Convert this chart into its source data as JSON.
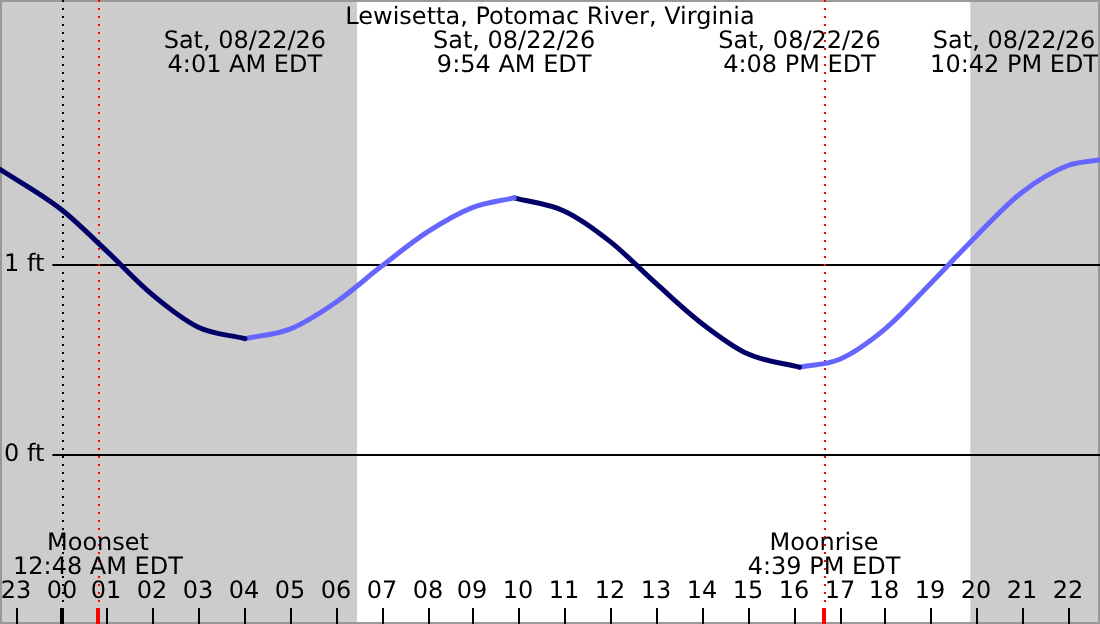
{
  "chart_data": {
    "type": "line",
    "title": "Lewisetta, Potomac River, Virginia",
    "xlim": [
      "--08-21T22:40",
      "--08-22T22:42"
    ],
    "ylim": [
      -0.89,
      2.39
    ],
    "xticks": [
      {
        "value": "--08-21T23:00",
        "label": "23"
      },
      {
        "value": "--08-22T00:00",
        "label": "00"
      },
      {
        "value": "--08-22T01:00",
        "label": "01"
      },
      {
        "value": "--08-22T02:00",
        "label": "02"
      },
      {
        "value": "--08-22T03:00",
        "label": "03"
      },
      {
        "value": "--08-22T04:00",
        "label": "04"
      },
      {
        "value": "--08-22T05:00",
        "label": "05"
      },
      {
        "value": "--08-22T06:00",
        "label": "06"
      },
      {
        "value": "--08-22T07:00",
        "label": "07"
      },
      {
        "value": "--08-22T08:00",
        "label": "08"
      },
      {
        "value": "--08-22T09:00",
        "label": "09"
      },
      {
        "value": "--08-22T10:00",
        "label": "10"
      },
      {
        "value": "--08-22T11:00",
        "label": "11"
      },
      {
        "value": "--08-22T12:00",
        "label": "12"
      },
      {
        "value": "--08-22T13:00",
        "label": "13"
      },
      {
        "value": "--08-22T14:00",
        "label": "14"
      },
      {
        "value": "--08-22T15:00",
        "label": "15"
      },
      {
        "value": "--08-22T16:00",
        "label": "16"
      },
      {
        "value": "--08-22T17:00",
        "label": "17"
      },
      {
        "value": "--08-22T18:00",
        "label": "18"
      },
      {
        "value": "--08-22T19:00",
        "label": "19"
      },
      {
        "value": "--08-22T20:00",
        "label": "20"
      },
      {
        "value": "--08-22T21:00",
        "label": "21"
      },
      {
        "value": "--08-22T22:00",
        "label": "22"
      }
    ],
    "x2lim": [
      "--08-21T22:40",
      "--08-22T22:42"
    ],
    "x2ticks": [
      {
        "value": "--08-22T04:01",
        "label": "Sat, 08/22/26\n4:01 AM EDT"
      },
      {
        "value": "--08-22T09:54",
        "label": "Sat, 08/22/26\n9:54 AM EDT"
      },
      {
        "value": "--08-22T16:08",
        "label": "Sat, 08/22/26\n4:08 PM EDT"
      },
      {
        "value": "--08-22T22:42",
        "label": "Sat, 08/22/26\n10:42 PM EDT"
      }
    ],
    "yticks": [
      {
        "value": 0,
        "label": "0 ft"
      },
      {
        "value": 1,
        "label": "1 ft"
      }
    ],
    "grid": "y",
    "legend": false,
    "marker": "none",
    "line_style": "solid",
    "series": [
      {
        "color": "#000066",
        "x": [
          "--08-21T22:40",
          "--08-22T00:00",
          "--08-22T01:00",
          "--08-22T02:00",
          "--08-22T03:00",
          "--08-22T04:01"
        ],
        "values": [
          1.5,
          1.29,
          1.07,
          0.84,
          0.67,
          0.61
        ]
      },
      {
        "color": "#6666ff",
        "x": [
          "--08-22T04:01",
          "--08-22T05:00",
          "--08-22T06:00",
          "--08-22T07:00",
          "--08-22T08:00",
          "--08-22T09:00",
          "--08-22T09:54"
        ],
        "values": [
          0.61,
          0.66,
          0.8,
          0.99,
          1.17,
          1.3,
          1.35
        ]
      },
      {
        "color": "#000066",
        "x": [
          "--08-22T09:54",
          "--08-22T11:00",
          "--08-22T12:00",
          "--08-22T13:00",
          "--08-22T14:00",
          "--08-22T15:00",
          "--08-22T16:08"
        ],
        "values": [
          1.35,
          1.28,
          1.12,
          0.9,
          0.69,
          0.53,
          0.46
        ]
      },
      {
        "color": "#6666ff",
        "x": [
          "--08-22T16:08",
          "--08-22T17:00",
          "--08-22T18:00",
          "--08-22T19:00",
          "--08-22T20:00",
          "--08-22T21:00",
          "--08-22T22:00",
          "--08-22T22:42"
        ],
        "values": [
          0.46,
          0.5,
          0.66,
          0.9,
          1.15,
          1.38,
          1.52,
          1.55
        ]
      }
    ],
    "bands": [
      {
        "axis": "x",
        "from": "--08-21T22:40",
        "to": "--08-22T06:28",
        "color": "#cccccc"
      },
      {
        "axis": "x",
        "from": "--08-22T19:52",
        "to": "--08-22T22:42",
        "color": "#cccccc"
      }
    ],
    "ref_lines": [
      {
        "axis": "x",
        "value": "--08-22T00:00",
        "color": "#000000",
        "line_style": "dotted"
      },
      {
        "axis": "x",
        "value": "--08-22T00:48",
        "label": "Moonset\n12:48 AM EDT",
        "color": "#ff0000",
        "line_style": "dotted"
      },
      {
        "axis": "x",
        "value": "--08-22T16:39",
        "label": "Moonrise\n4:39 PM EDT",
        "color": "#ff0000",
        "line_style": "dotted"
      }
    ]
  }
}
